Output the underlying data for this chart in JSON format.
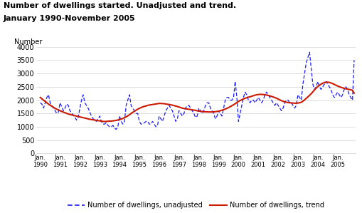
{
  "title_line1": "Number of dwellings started. Unadjusted and trend.",
  "title_line2": "January 1990-November 2005",
  "ylabel": "Number",
  "ylim": [
    0,
    4000
  ],
  "yticks": [
    0,
    500,
    1000,
    1500,
    2000,
    2500,
    3000,
    3500,
    4000
  ],
  "unadjusted_color": "#1a1aff",
  "trend_color": "#cc1a00",
  "background_color": "#ffffff",
  "grid_color": "#d0d0d0",
  "legend_unadjusted": "Number of dwellings, unadjusted",
  "legend_trend": "Number of dwellings, trend",
  "unadjusted": [
    1900,
    1850,
    1700,
    1900,
    2100,
    2200,
    1900,
    1800,
    1700,
    1600,
    1500,
    1550,
    1900,
    1750,
    1600,
    1700,
    1850,
    1800,
    1600,
    1500,
    1450,
    1350,
    1250,
    1350,
    1700,
    2000,
    2200,
    1900,
    1800,
    1700,
    1550,
    1400,
    1300,
    1250,
    1200,
    1300,
    1400,
    1200,
    1100,
    1100,
    1150,
    1050,
    1000,
    1000,
    1050,
    950,
    900,
    1000,
    1400,
    1200,
    1100,
    1200,
    1800,
    2000,
    2200,
    1800,
    1700,
    1600,
    1500,
    1500,
    1200,
    1100,
    1100,
    1150,
    1200,
    1200,
    1100,
    1100,
    1200,
    1100,
    1000,
    1050,
    1400,
    1300,
    1200,
    1400,
    1600,
    1700,
    1800,
    1700,
    1600,
    1400,
    1200,
    1300,
    1600,
    1500,
    1400,
    1500,
    1700,
    1800,
    1800,
    1700,
    1600,
    1500,
    1350,
    1400,
    1700,
    1600,
    1500,
    1600,
    1800,
    1900,
    1900,
    1700,
    1600,
    1500,
    1300,
    1400,
    1600,
    1500,
    1400,
    1700,
    2000,
    2100,
    2100,
    2000,
    2000,
    2100,
    2700,
    2100,
    1200,
    1500,
    1800,
    2100,
    2300,
    2200,
    2000,
    1900,
    2000,
    2000,
    1900,
    2000,
    2100,
    2000,
    1900,
    2000,
    2200,
    2300,
    2200,
    2100,
    2000,
    1900,
    1800,
    1900,
    1800,
    1700,
    1600,
    1700,
    1900,
    2000,
    2000,
    1900,
    1900,
    1800,
    1700,
    1800,
    2200,
    2100,
    2000,
    2600,
    3000,
    3400,
    3600,
    3800,
    3200,
    2600,
    2400,
    2500,
    2700,
    2500,
    2400,
    2500,
    2600,
    2700,
    2600,
    2500,
    2400,
    2200,
    2100,
    2200,
    2300,
    2200,
    2100,
    2200,
    2400,
    2500,
    2400,
    2200,
    2100,
    2000,
    3500
  ],
  "trend": [
    2100,
    2050,
    2000,
    1950,
    1900,
    1850,
    1810,
    1770,
    1730,
    1690,
    1660,
    1630,
    1600,
    1575,
    1550,
    1525,
    1500,
    1480,
    1460,
    1445,
    1430,
    1415,
    1400,
    1385,
    1370,
    1355,
    1340,
    1325,
    1310,
    1295,
    1280,
    1270,
    1260,
    1250,
    1240,
    1230,
    1220,
    1210,
    1200,
    1195,
    1200,
    1205,
    1210,
    1215,
    1220,
    1230,
    1240,
    1255,
    1270,
    1290,
    1310,
    1340,
    1370,
    1410,
    1450,
    1500,
    1540,
    1580,
    1620,
    1660,
    1690,
    1720,
    1745,
    1765,
    1780,
    1800,
    1815,
    1825,
    1835,
    1845,
    1855,
    1865,
    1875,
    1875,
    1870,
    1865,
    1855,
    1845,
    1835,
    1825,
    1810,
    1795,
    1775,
    1760,
    1740,
    1720,
    1700,
    1685,
    1675,
    1665,
    1655,
    1645,
    1635,
    1625,
    1615,
    1600,
    1590,
    1580,
    1570,
    1565,
    1560,
    1560,
    1555,
    1555,
    1555,
    1560,
    1565,
    1575,
    1585,
    1600,
    1620,
    1640,
    1665,
    1690,
    1720,
    1755,
    1790,
    1825,
    1865,
    1910,
    1950,
    1985,
    2015,
    2045,
    2070,
    2090,
    2110,
    2125,
    2145,
    2165,
    2185,
    2200,
    2210,
    2215,
    2215,
    2210,
    2200,
    2190,
    2175,
    2160,
    2140,
    2120,
    2095,
    2070,
    2040,
    2010,
    1980,
    1955,
    1935,
    1920,
    1910,
    1900,
    1895,
    1890,
    1885,
    1885,
    1890,
    1900,
    1920,
    1960,
    2010,
    2065,
    2120,
    2180,
    2240,
    2310,
    2380,
    2450,
    2510,
    2560,
    2600,
    2635,
    2660,
    2670,
    2675,
    2665,
    2645,
    2620,
    2590,
    2560,
    2530,
    2505,
    2480,
    2460,
    2440,
    2425,
    2415,
    2400,
    2385,
    2370,
    2260
  ]
}
